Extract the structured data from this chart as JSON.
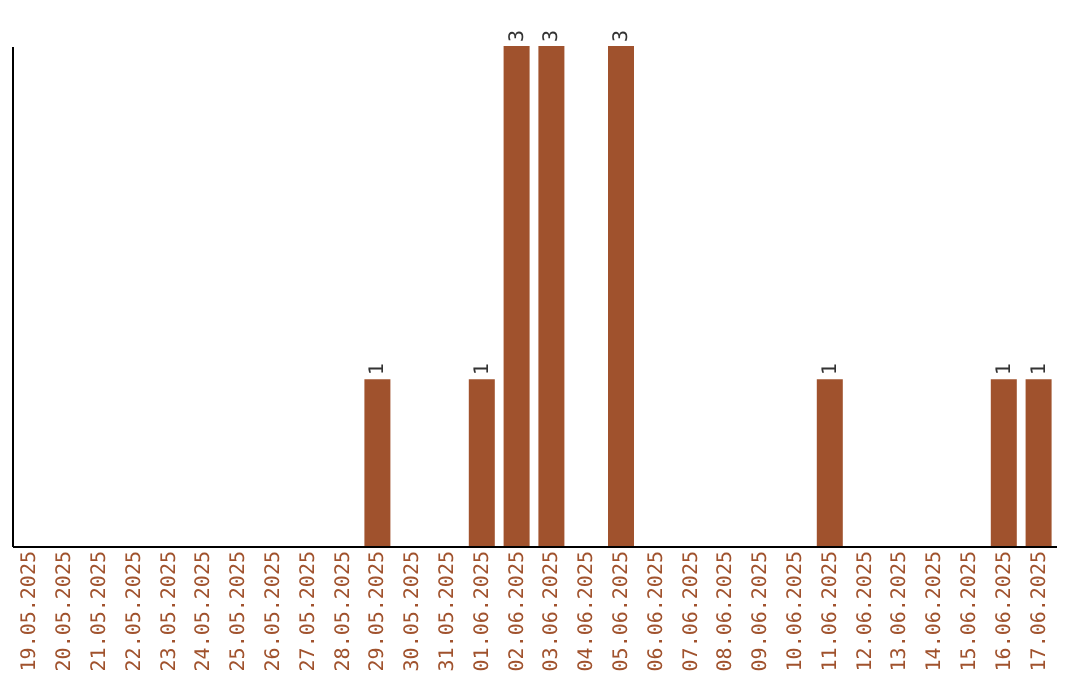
{
  "chart_data": {
    "type": "bar",
    "categories": [
      "19.05.2025",
      "20.05.2025",
      "21.05.2025",
      "22.05.2025",
      "23.05.2025",
      "24.05.2025",
      "25.05.2025",
      "26.05.2025",
      "27.05.2025",
      "28.05.2025",
      "29.05.2025",
      "30.05.2025",
      "31.05.2025",
      "01.06.2025",
      "02.06.2025",
      "03.06.2025",
      "04.06.2025",
      "05.06.2025",
      "06.06.2025",
      "07.06.2025",
      "08.06.2025",
      "09.06.2025",
      "10.06.2025",
      "11.06.2025",
      "12.06.2025",
      "13.06.2025",
      "14.06.2025",
      "15.06.2025",
      "16.06.2025",
      "17.06.2025"
    ],
    "values": [
      0,
      0,
      0,
      0,
      0,
      0,
      0,
      0,
      0,
      0,
      1,
      0,
      0,
      1,
      3,
      3,
      0,
      3,
      0,
      0,
      0,
      0,
      0,
      1,
      0,
      0,
      0,
      0,
      1,
      1
    ],
    "value_labels": [
      null,
      null,
      null,
      null,
      null,
      null,
      null,
      null,
      null,
      null,
      "1",
      null,
      null,
      "1",
      "3",
      "3",
      null,
      "3",
      null,
      null,
      null,
      null,
      null,
      "1",
      null,
      null,
      null,
      null,
      "1",
      "1"
    ],
    "color": "#a0522d",
    "grid": false,
    "tick_labels": "x"
  }
}
